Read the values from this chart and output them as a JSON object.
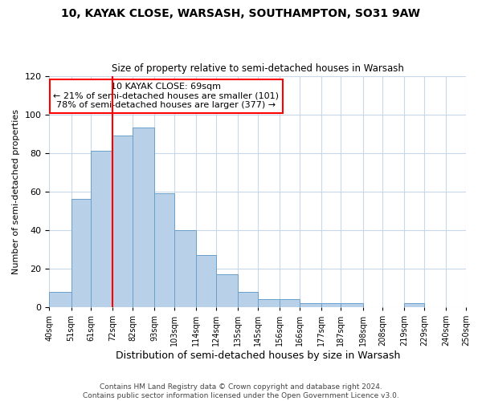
{
  "title": "10, KAYAK CLOSE, WARSASH, SOUTHAMPTON, SO31 9AW",
  "subtitle": "Size of property relative to semi-detached houses in Warsash",
  "xlabel": "Distribution of semi-detached houses by size in Warsash",
  "ylabel": "Number of semi-detached properties",
  "bar_edges": [
    40,
    51,
    61,
    72,
    82,
    93,
    103,
    114,
    124,
    135,
    145,
    156,
    166,
    177,
    187,
    198,
    208,
    219,
    229,
    240,
    250
  ],
  "bar_heights": [
    8,
    56,
    81,
    89,
    93,
    59,
    40,
    27,
    17,
    8,
    4,
    4,
    2,
    2,
    2,
    0,
    0,
    2,
    0,
    0
  ],
  "bar_color": "#b8d0e8",
  "bar_edge_color": "#6aa0cc",
  "property_line_x": 72,
  "property_line_color": "red",
  "ylim": [
    0,
    120
  ],
  "annotation_title": "10 KAYAK CLOSE: 69sqm",
  "annotation_line1": "← 21% of semi-detached houses are smaller (101)",
  "annotation_line2": "78% of semi-detached houses are larger (377) →",
  "tick_labels": [
    "40sqm",
    "51sqm",
    "61sqm",
    "72sqm",
    "82sqm",
    "93sqm",
    "103sqm",
    "114sqm",
    "124sqm",
    "135sqm",
    "145sqm",
    "156sqm",
    "166sqm",
    "177sqm",
    "187sqm",
    "198sqm",
    "208sqm",
    "219sqm",
    "229sqm",
    "240sqm",
    "250sqm"
  ],
  "footer_line1": "Contains HM Land Registry data © Crown copyright and database right 2024.",
  "footer_line2": "Contains public sector information licensed under the Open Government Licence v3.0.",
  "background_color": "#ffffff",
  "grid_color": "#c8d8e8",
  "yticks": [
    0,
    20,
    40,
    60,
    80,
    100,
    120
  ]
}
